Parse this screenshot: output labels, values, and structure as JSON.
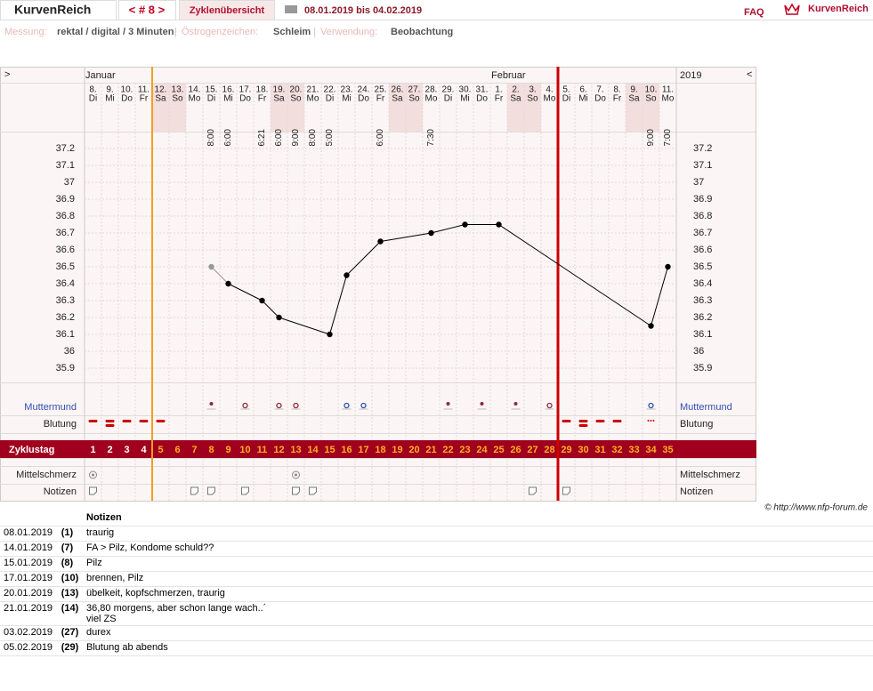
{
  "header": {
    "logo": "KurvenReich",
    "cycle_nav": "< # 8 >",
    "tab": "Zyklenübersicht",
    "date_range": "08.01.2019 bis 04.02.2019",
    "faq": "FAQ",
    "brand": "KurvenReich"
  },
  "info": {
    "measure_label": "Messung:",
    "measure": "rektal / digital / 3 Minuten",
    "separator": "|",
    "estrogen_label": "Östrogenzeichen:",
    "estrogen": "Schleim",
    "usage_label": "Verwendung:",
    "usage": "Beobachtung"
  },
  "chart_data": {
    "type": "line",
    "nav_left": ">",
    "nav_right": "<",
    "year": "2019",
    "month_labels": [
      "Januar",
      null,
      null,
      null,
      null,
      null,
      null,
      null,
      null,
      null,
      null,
      null,
      null,
      null,
      null,
      null,
      null,
      null,
      null,
      null,
      null,
      null,
      null,
      null,
      "Februar",
      null,
      null,
      null,
      null,
      null,
      null,
      null,
      null,
      null,
      null
    ],
    "categories": [
      "8.",
      "9.",
      "10.",
      "11.",
      "12.",
      "13.",
      "14.",
      "15.",
      "16.",
      "17.",
      "18.",
      "19.",
      "20.",
      "21.",
      "22.",
      "23.",
      "24.",
      "25.",
      "26.",
      "27.",
      "28.",
      "29.",
      "30.",
      "31.",
      "1.",
      "2.",
      "3.",
      "4.",
      "5.",
      "6.",
      "7.",
      "8.",
      "9.",
      "10.",
      "11."
    ],
    "weekdays": [
      "Di",
      "Mi",
      "Do",
      "Fr",
      "Sa",
      "So",
      "Mo",
      "Di",
      "Mi",
      "Do",
      "Fr",
      "Sa",
      "So",
      "Mo",
      "Di",
      "Mi",
      "Do",
      "Fr",
      "Sa",
      "So",
      "Mo",
      "Di",
      "Mi",
      "Do",
      "Fr",
      "Sa",
      "So",
      "Mo",
      "Di",
      "Mi",
      "Do",
      "Fr",
      "Sa",
      "So",
      "Mo"
    ],
    "times": [
      null,
      null,
      null,
      null,
      null,
      null,
      null,
      "8:00",
      "6:00",
      null,
      "6:21",
      "6:00",
      "9:00",
      "8:00",
      "5:00",
      null,
      null,
      "6:00",
      null,
      null,
      "7:30",
      null,
      null,
      null,
      null,
      null,
      null,
      null,
      null,
      null,
      null,
      null,
      null,
      "9:00",
      "7:00"
    ],
    "values": [
      null,
      null,
      null,
      null,
      null,
      null,
      null,
      36.5,
      36.4,
      null,
      36.3,
      36.2,
      null,
      null,
      36.1,
      36.45,
      null,
      36.65,
      null,
      null,
      36.7,
      null,
      36.75,
      null,
      36.75,
      null,
      null,
      null,
      null,
      null,
      null,
      null,
      null,
      36.15,
      36.5
    ],
    "marker_colors": [
      null,
      null,
      null,
      null,
      null,
      null,
      null,
      "#999999",
      "#000000",
      null,
      "#000000",
      "#000000",
      null,
      null,
      "#000000",
      "#000000",
      null,
      "#000000",
      null,
      null,
      "#000000",
      null,
      "#000000",
      null,
      "#000000",
      null,
      null,
      null,
      null,
      null,
      null,
      null,
      null,
      "#000000",
      "#000000"
    ],
    "color": "#000000",
    "ylim": [
      35.8,
      37.3
    ],
    "yticks": [
      35.9,
      36,
      36.1,
      36.2,
      36.3,
      36.4,
      36.5,
      36.6,
      36.7,
      36.8,
      36.9,
      37,
      37.1,
      37.2
    ],
    "row_labels": {
      "muttermund": "Muttermund",
      "blutung": "Blutung",
      "zyklustag": "Zyklustag",
      "mittelschmerz": "Mittelschmerz",
      "notizen": "Notizen"
    },
    "cycle_days": [
      1,
      2,
      3,
      4,
      5,
      6,
      7,
      8,
      9,
      10,
      11,
      12,
      13,
      14,
      15,
      16,
      17,
      18,
      19,
      20,
      21,
      22,
      23,
      24,
      25,
      26,
      27,
      28,
      29,
      30,
      31,
      32,
      33,
      34,
      35
    ],
    "weekend_columns": [
      4,
      5,
      11,
      12,
      18,
      19,
      25,
      26,
      32,
      33
    ],
    "cycle_lines": [
      {
        "day": 4,
        "color": "#f0a020"
      },
      {
        "day": 28,
        "color": "#cc0000"
      }
    ],
    "muttermund": [
      {
        "day": 7,
        "shape": "dot",
        "color": "#8b2a3a"
      },
      {
        "day": 9,
        "shape": "ring",
        "color": "#8b2a3a"
      },
      {
        "day": 11,
        "shape": "ring",
        "color": "#8b2a3a"
      },
      {
        "day": 12,
        "shape": "ring",
        "color": "#8b2a3a"
      },
      {
        "day": 15,
        "shape": "ring",
        "color": "#3050b0"
      },
      {
        "day": 16,
        "shape": "ring",
        "color": "#3050b0"
      },
      {
        "day": 21,
        "shape": "dot",
        "color": "#8b2a3a"
      },
      {
        "day": 23,
        "shape": "dot",
        "color": "#8b2a3a"
      },
      {
        "day": 25,
        "shape": "dot",
        "color": "#8b2a3a"
      },
      {
        "day": 27,
        "shape": "ring",
        "color": "#8b2a3a"
      },
      {
        "day": 33,
        "shape": "ring",
        "color": "#3050b0"
      }
    ],
    "blutung_days": [
      0,
      1,
      2,
      3,
      4,
      28,
      29,
      30,
      31
    ],
    "blutung_strong_days": [
      1,
      29
    ],
    "spotting_days": [
      33
    ],
    "mittelschmerz_days": [
      0,
      12
    ],
    "notizen_days": [
      0,
      6,
      7,
      9,
      12,
      13,
      26,
      28
    ]
  },
  "notes": {
    "title": "Notizen",
    "rows": [
      {
        "date": "08.01.2019",
        "day": "(1)",
        "text": "traurig"
      },
      {
        "date": "14.01.2019",
        "day": "(7)",
        "text": "FA > Pilz, Kondome schuld??"
      },
      {
        "date": "15.01.2019",
        "day": "(8)",
        "text": "Pilz"
      },
      {
        "date": "17.01.2019",
        "day": "(10)",
        "text": "brennen, Pilz"
      },
      {
        "date": "20.01.2019",
        "day": "(13)",
        "text": "übelkeit, kopfschmerzen, traurig"
      },
      {
        "date": "21.01.2019",
        "day": "(14)",
        "text": "36,80 morgens, aber schon lange wach..´\nviel ZS"
      },
      {
        "date": "03.02.2019",
        "day": "(27)",
        "text": "durex"
      },
      {
        "date": "05.02.2019",
        "day": "(29)",
        "text": "Blutung ab abends"
      }
    ]
  },
  "copyright": "© http://www.nfp-forum.de"
}
